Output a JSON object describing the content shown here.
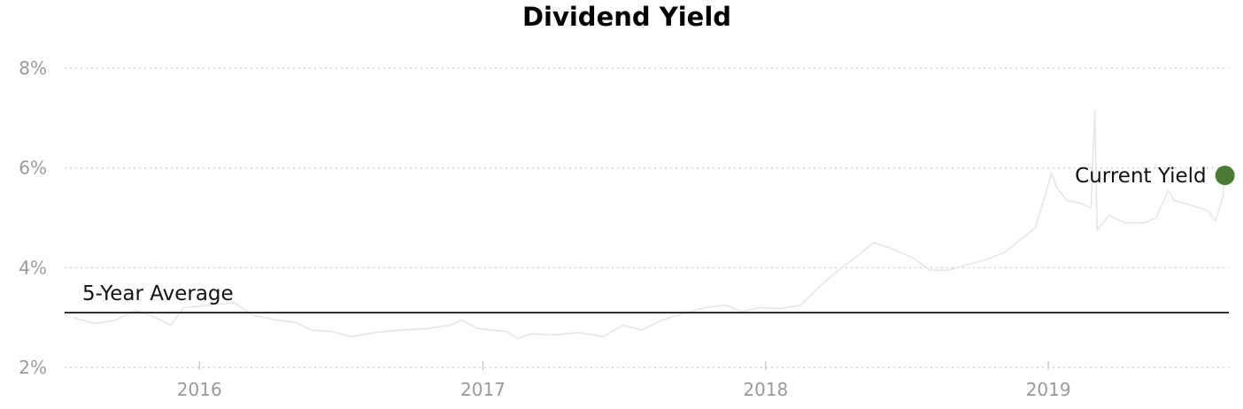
{
  "chart_data": {
    "type": "line",
    "title": "Dividend Yield",
    "xlabel": "",
    "ylabel": "",
    "y_ticks": [
      {
        "value": 2,
        "label": "2%"
      },
      {
        "value": 4,
        "label": "4%"
      },
      {
        "value": 6,
        "label": "6%"
      },
      {
        "value": 8,
        "label": "8%"
      }
    ],
    "x_ticks": [
      {
        "value": "2016-01-01",
        "label": "2016"
      },
      {
        "value": "2017-01-01",
        "label": "2017"
      },
      {
        "value": "2018-01-01",
        "label": "2018"
      },
      {
        "value": "2019-01-01",
        "label": "2019"
      }
    ],
    "ylim": [
      1.95,
      8.3
    ],
    "xlim": [
      "2015-07-11",
      "2019-08-22"
    ],
    "grid": "horizontal-dotted",
    "series": [
      {
        "color": "#e6e6e6",
        "points": [
          [
            "2015-07-22",
            3.0
          ],
          [
            "2015-08-20",
            2.88
          ],
          [
            "2015-09-15",
            2.95
          ],
          [
            "2015-10-10",
            3.15
          ],
          [
            "2015-11-05",
            3.0
          ],
          [
            "2015-11-25",
            2.85
          ],
          [
            "2015-12-12",
            3.2
          ],
          [
            "2016-01-15",
            3.25
          ],
          [
            "2016-02-15",
            3.3
          ],
          [
            "2016-03-10",
            3.05
          ],
          [
            "2016-04-10",
            2.95
          ],
          [
            "2016-05-05",
            2.9
          ],
          [
            "2016-05-25",
            2.75
          ],
          [
            "2016-06-20",
            2.72
          ],
          [
            "2016-07-15",
            2.62
          ],
          [
            "2016-08-15",
            2.7
          ],
          [
            "2016-09-15",
            2.75
          ],
          [
            "2016-10-20",
            2.78
          ],
          [
            "2016-11-20",
            2.85
          ],
          [
            "2016-12-05",
            2.95
          ],
          [
            "2016-12-25",
            2.78
          ],
          [
            "2017-02-01",
            2.72
          ],
          [
            "2017-02-15",
            2.58
          ],
          [
            "2017-03-05",
            2.68
          ],
          [
            "2017-04-01",
            2.65
          ],
          [
            "2017-05-05",
            2.7
          ],
          [
            "2017-06-05",
            2.62
          ],
          [
            "2017-07-01",
            2.85
          ],
          [
            "2017-07-25",
            2.75
          ],
          [
            "2017-08-20",
            2.95
          ],
          [
            "2017-09-20",
            3.1
          ],
          [
            "2017-10-15",
            3.2
          ],
          [
            "2017-11-10",
            3.25
          ],
          [
            "2017-12-01",
            3.12
          ],
          [
            "2017-12-25",
            3.2
          ],
          [
            "2018-01-20",
            3.18
          ],
          [
            "2018-02-15",
            3.25
          ],
          [
            "2018-03-10",
            3.6
          ],
          [
            "2018-04-05",
            3.95
          ],
          [
            "2018-05-01",
            4.25
          ],
          [
            "2018-05-20",
            4.5
          ],
          [
            "2018-06-10",
            4.4
          ],
          [
            "2018-07-10",
            4.2
          ],
          [
            "2018-08-01",
            3.95
          ],
          [
            "2018-08-25",
            3.95
          ],
          [
            "2018-09-15",
            4.05
          ],
          [
            "2018-10-10",
            4.15
          ],
          [
            "2018-11-05",
            4.3
          ],
          [
            "2018-11-25",
            4.55
          ],
          [
            "2018-12-15",
            4.8
          ],
          [
            "2018-12-28",
            5.45
          ],
          [
            "2019-01-05",
            5.9
          ],
          [
            "2019-01-12",
            5.6
          ],
          [
            "2019-01-25",
            5.35
          ],
          [
            "2019-02-10",
            5.3
          ],
          [
            "2019-02-25",
            5.2
          ],
          [
            "2019-03-02",
            7.15
          ],
          [
            "2019-03-05",
            4.75
          ],
          [
            "2019-03-20",
            5.05
          ],
          [
            "2019-04-10",
            4.9
          ],
          [
            "2019-05-05",
            4.9
          ],
          [
            "2019-05-20",
            5.0
          ],
          [
            "2019-06-05",
            5.55
          ],
          [
            "2019-06-12",
            5.35
          ],
          [
            "2019-07-05",
            5.25
          ],
          [
            "2019-07-25",
            5.15
          ],
          [
            "2019-08-05",
            4.95
          ],
          [
            "2019-08-14",
            5.4
          ],
          [
            "2019-08-17",
            5.85
          ]
        ]
      }
    ],
    "reference_line": {
      "label": "5-Year Average",
      "value": 3.1,
      "color": "#000000"
    },
    "current": {
      "label": "Current Yield",
      "date": "2019-08-17",
      "value": 5.85,
      "color": "#4a7c34"
    }
  }
}
